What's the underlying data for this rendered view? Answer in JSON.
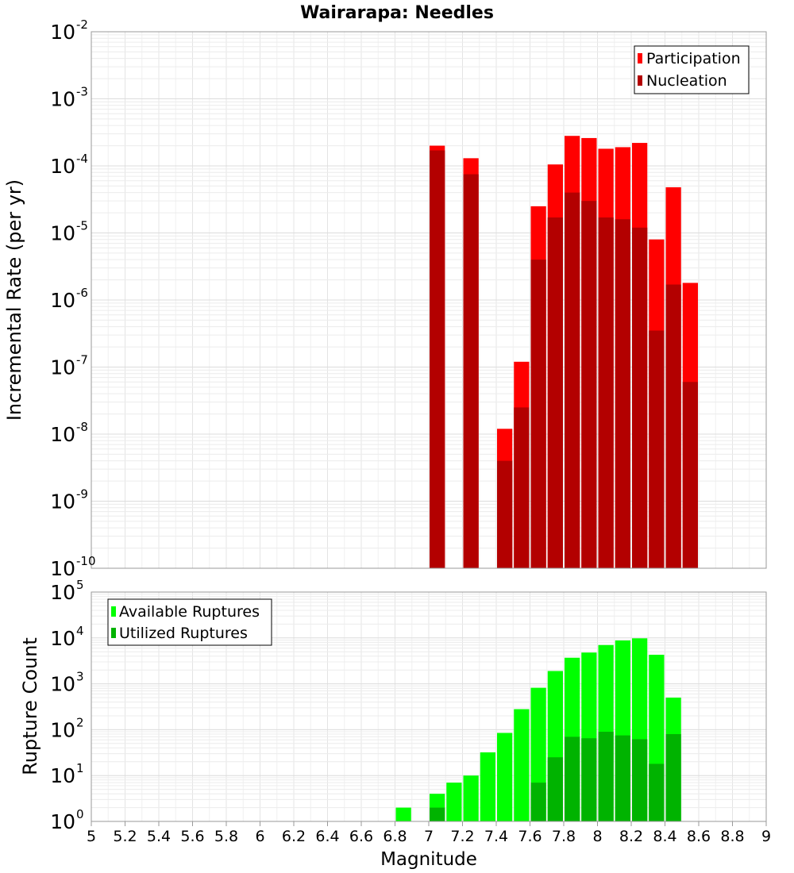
{
  "chart_data": [
    {
      "type": "bar",
      "title": "Wairarapa: Needles",
      "ylabel": "Incremental Rate (per yr)",
      "xlabel": "",
      "scale": "log",
      "xlim": [
        5,
        9
      ],
      "ylim_exponents": [
        -10,
        -2
      ],
      "bin_width": 0.1,
      "legend_position": "top-right",
      "series": [
        {
          "name": "Participation",
          "color": "#ff0000",
          "points": [
            [
              7.05,
              0.0002
            ],
            [
              7.25,
              0.00013
            ],
            [
              7.45,
              1.2e-08
            ],
            [
              7.55,
              1.2e-07
            ],
            [
              7.65,
              2.5e-05
            ],
            [
              7.75,
              0.000105
            ],
            [
              7.85,
              0.00028
            ],
            [
              7.95,
              0.00026
            ],
            [
              8.05,
              0.00018
            ],
            [
              8.15,
              0.00019
            ],
            [
              8.25,
              0.00022
            ],
            [
              8.35,
              8e-06
            ],
            [
              8.45,
              4.8e-05
            ],
            [
              8.55,
              1.8e-06
            ]
          ]
        },
        {
          "name": "Nucleation",
          "color": "#b30000",
          "points": [
            [
              7.05,
              0.00017
            ],
            [
              7.25,
              7.5e-05
            ],
            [
              7.45,
              4e-09
            ],
            [
              7.55,
              2.5e-08
            ],
            [
              7.65,
              4e-06
            ],
            [
              7.75,
              1.7e-05
            ],
            [
              7.85,
              4e-05
            ],
            [
              7.95,
              3e-05
            ],
            [
              8.05,
              1.7e-05
            ],
            [
              8.15,
              1.6e-05
            ],
            [
              8.25,
              1.2e-05
            ],
            [
              8.35,
              3.5e-07
            ],
            [
              8.45,
              1.7e-06
            ],
            [
              8.55,
              6e-08
            ]
          ]
        }
      ]
    },
    {
      "type": "bar",
      "title": "",
      "ylabel": "Rupture Count",
      "xlabel": "Magnitude",
      "scale": "log",
      "xlim": [
        5,
        9
      ],
      "ylim_exponents": [
        0,
        5
      ],
      "bin_width": 0.1,
      "legend_position": "top-left",
      "x_ticks": [
        "5",
        "5.2",
        "5.4",
        "5.6",
        "5.8",
        "6",
        "6.2",
        "6.4",
        "6.6",
        "6.8",
        "7",
        "7.2",
        "7.4",
        "7.6",
        "7.8",
        "8",
        "8.2",
        "8.4",
        "8.6",
        "8.8",
        "9"
      ],
      "series": [
        {
          "name": "Available Ruptures",
          "color": "#00ff00",
          "points": [
            [
              6.85,
              2
            ],
            [
              6.95,
              1
            ],
            [
              7.05,
              4
            ],
            [
              7.15,
              7
            ],
            [
              7.25,
              10
            ],
            [
              7.35,
              32
            ],
            [
              7.45,
              85
            ],
            [
              7.55,
              280
            ],
            [
              7.65,
              820
            ],
            [
              7.75,
              1900
            ],
            [
              7.85,
              3700
            ],
            [
              7.95,
              4800
            ],
            [
              8.05,
              7000
            ],
            [
              8.15,
              8800
            ],
            [
              8.25,
              9800
            ],
            [
              8.35,
              4300
            ],
            [
              8.45,
              500
            ],
            [
              8.55,
              1
            ]
          ]
        },
        {
          "name": "Utilized Ruptures",
          "color": "#00b300",
          "points": [
            [
              7.05,
              2
            ],
            [
              7.25,
              1
            ],
            [
              7.45,
              1
            ],
            [
              7.55,
              1
            ],
            [
              7.65,
              7
            ],
            [
              7.75,
              25
            ],
            [
              7.85,
              70
            ],
            [
              7.95,
              65
            ],
            [
              8.05,
              90
            ],
            [
              8.15,
              75
            ],
            [
              8.25,
              62
            ],
            [
              8.35,
              18
            ],
            [
              8.45,
              80
            ],
            [
              8.55,
              1
            ]
          ]
        }
      ]
    }
  ]
}
